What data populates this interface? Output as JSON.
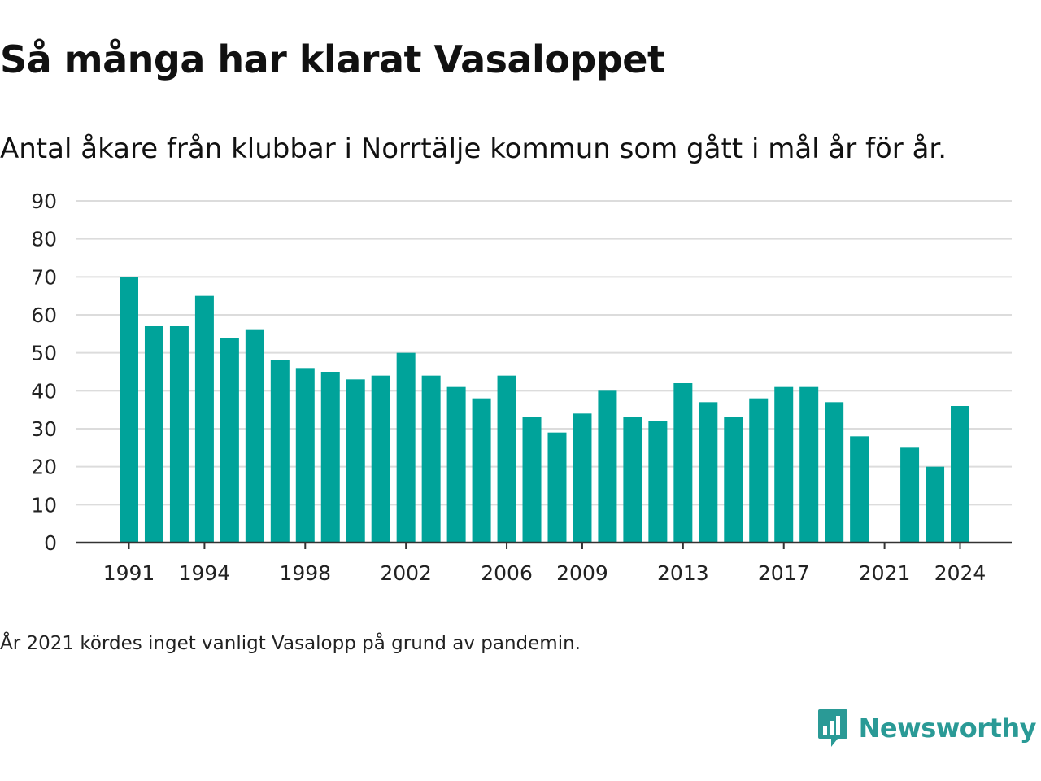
{
  "header": {
    "title": "Så många har klarat Vasaloppet",
    "subtitle": "Antal åkare från klubbar i Norrtälje kommun som gått i mål år för år."
  },
  "footnote": "År 2021 kördes inget vanligt Vasalopp på grund av pandemin.",
  "brand": {
    "name": "Newsworthy",
    "logo_icon": "newsworthy-logo-icon"
  },
  "colors": {
    "bar": "#00a39a",
    "grid": "#dcdcdc",
    "axis": "#333333",
    "brand": "#2a9a96"
  },
  "chart_data": {
    "type": "bar",
    "title": "Så många har klarat Vasaloppet",
    "subtitle": "Antal åkare från klubbar i Norrtälje kommun som gått i mål år för år.",
    "xlabel": "",
    "ylabel": "",
    "ylim": [
      0,
      90
    ],
    "yticks": [
      0,
      10,
      20,
      30,
      40,
      50,
      60,
      70,
      80,
      90
    ],
    "xtick_labels": [
      "1991",
      "1994",
      "1998",
      "2002",
      "2006",
      "2009",
      "2013",
      "2017",
      "2021",
      "2024"
    ],
    "grid": true,
    "legend": "none",
    "categories": [
      1991,
      1992,
      1993,
      1994,
      1995,
      1996,
      1997,
      1998,
      1999,
      2000,
      2001,
      2002,
      2003,
      2004,
      2005,
      2006,
      2007,
      2008,
      2009,
      2010,
      2011,
      2012,
      2013,
      2014,
      2015,
      2016,
      2017,
      2018,
      2019,
      2020,
      2021,
      2022,
      2023,
      2024
    ],
    "values": [
      70,
      57,
      57,
      65,
      54,
      56,
      48,
      46,
      45,
      43,
      44,
      50,
      44,
      41,
      38,
      44,
      33,
      29,
      34,
      40,
      33,
      32,
      42,
      37,
      33,
      38,
      41,
      41,
      37,
      28,
      null,
      25,
      20,
      36
    ]
  }
}
